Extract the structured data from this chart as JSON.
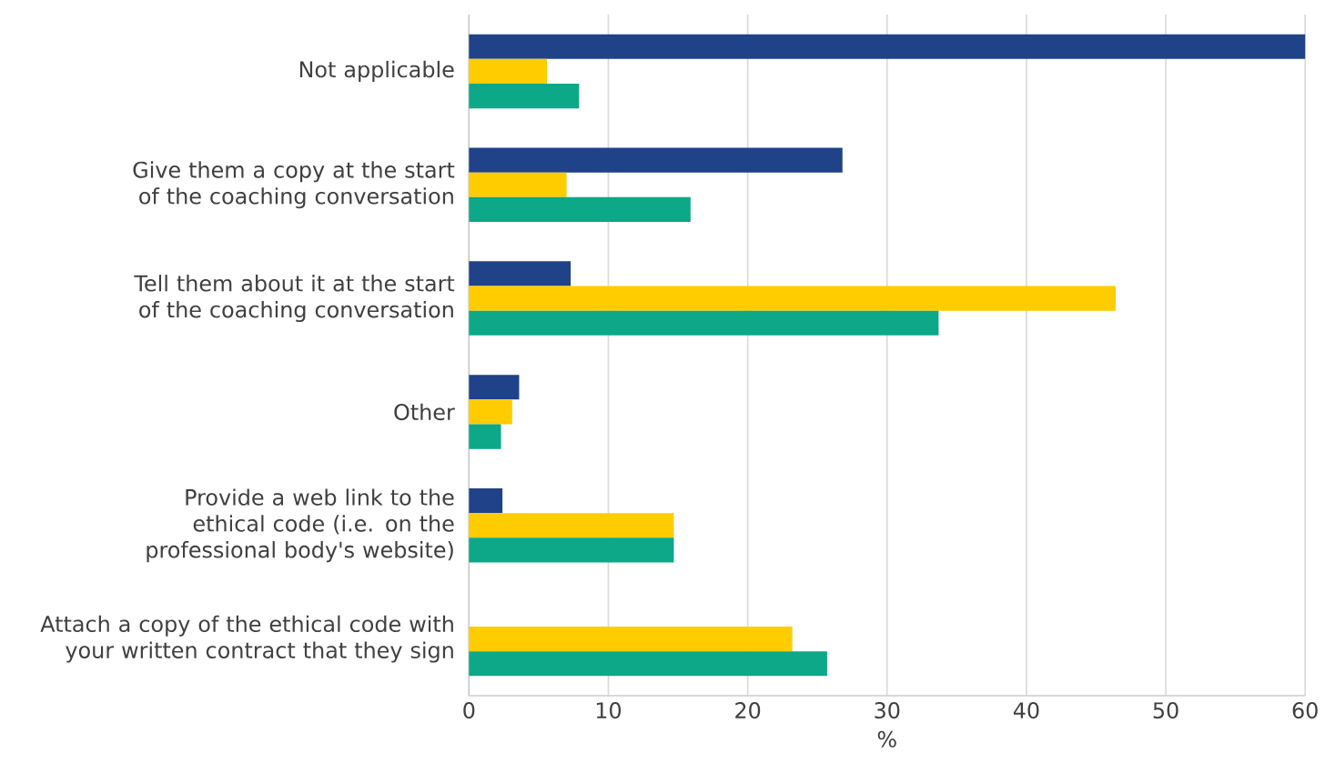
{
  "chart_data": {
    "type": "bar",
    "orientation": "horizontal",
    "xlabel": "%",
    "categories": [
      "Not applicable",
      "Give them a copy at the start of the coaching conversation",
      "Tell them about it at the start of the coaching conversation",
      "Other",
      "Provide a web link to the ethical code (i.e. on the professional body's website)",
      "Attach a copy of the ethical code with your written contract that they sign"
    ],
    "series": [
      {
        "color": "#1f4289",
        "values": [
          60,
          26.8,
          7.3,
          3.6,
          2.4,
          null
        ]
      },
      {
        "color": "#ffcc00",
        "values": [
          5.6,
          7.0,
          46.4,
          3.1,
          14.7,
          23.2
        ]
      },
      {
        "color": "#0ca888",
        "values": [
          7.9,
          15.9,
          33.7,
          2.3,
          14.7,
          25.7
        ]
      }
    ],
    "xlim": [
      0,
      60
    ],
    "xticks": [
      0,
      10,
      20,
      30,
      40,
      50,
      60
    ],
    "grid": "x"
  }
}
